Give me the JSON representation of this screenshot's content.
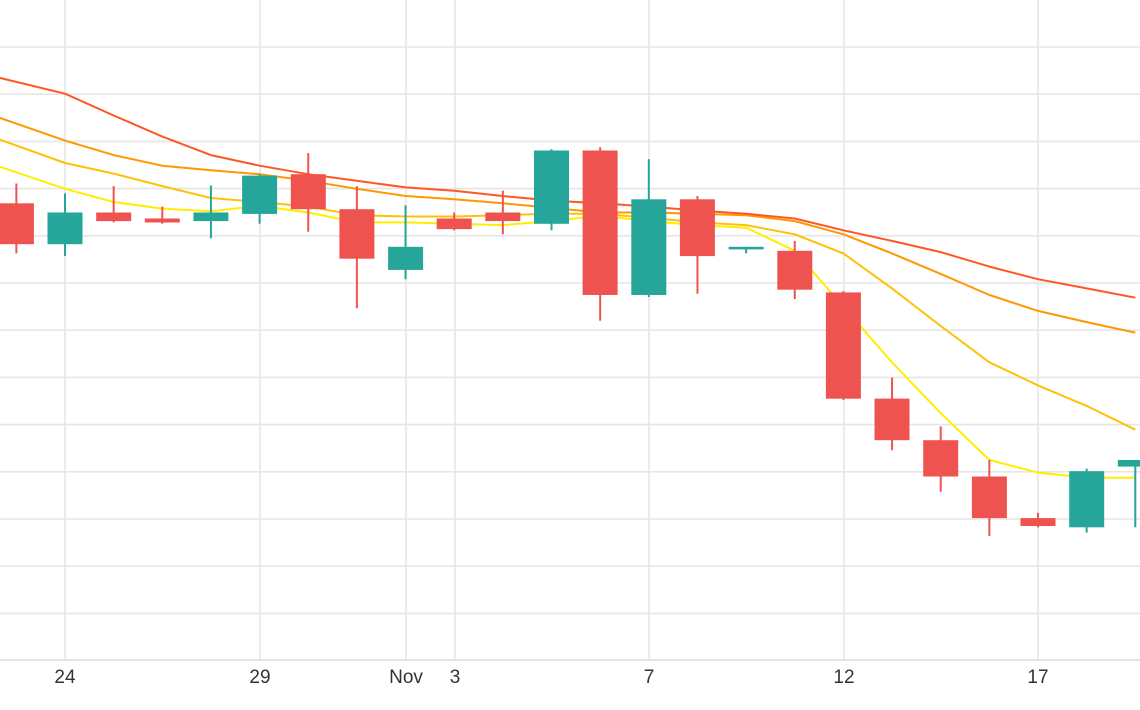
{
  "chart_data": {
    "type": "candlestick",
    "x_tick_labels": [
      "24",
      "29",
      "Nov",
      "3",
      "7",
      "12",
      "17"
    ],
    "y_range": [
      0,
      100
    ],
    "grid": true,
    "legend": "none",
    "colors": {
      "up": "#26a69a",
      "down": "#ef5350",
      "grid": "#e6e6e6",
      "ma": [
        "#ffee00",
        "#ffc107",
        "#ff9800",
        "#ff5722"
      ]
    },
    "candles": [
      {
        "day": -1,
        "open": 69.2,
        "high": 72.2,
        "low": 61.6,
        "close": 63.0
      },
      {
        "day": 0,
        "open": 63.0,
        "high": 70.7,
        "low": 61.2,
        "close": 67.8
      },
      {
        "day": 1,
        "open": 67.8,
        "high": 71.8,
        "low": 66.3,
        "close": 66.5
      },
      {
        "day": 2,
        "open": 66.9,
        "high": 68.7,
        "low": 66.1,
        "close": 66.3
      },
      {
        "day": 3,
        "open": 66.5,
        "high": 71.9,
        "low": 63.9,
        "close": 67.8
      },
      {
        "day": 4,
        "open": 67.6,
        "high": 73.6,
        "low": 66.1,
        "close": 73.4
      },
      {
        "day": 5,
        "open": 73.6,
        "high": 76.8,
        "low": 64.9,
        "close": 68.3
      },
      {
        "day": 6,
        "open": 68.3,
        "high": 71.8,
        "low": 53.3,
        "close": 60.8
      },
      {
        "day": 7,
        "open": 59.1,
        "high": 68.9,
        "low": 57.7,
        "close": 62.6
      },
      {
        "day": 8,
        "open": 66.9,
        "high": 67.8,
        "low": 65.1,
        "close": 65.3
      },
      {
        "day": 9,
        "open": 67.8,
        "high": 71.1,
        "low": 64.5,
        "close": 66.5
      },
      {
        "day": 10,
        "open": 66.1,
        "high": 77.4,
        "low": 65.1,
        "close": 77.2
      },
      {
        "day": 11,
        "open": 77.2,
        "high": 77.7,
        "low": 51.4,
        "close": 55.3
      },
      {
        "day": 12,
        "open": 55.3,
        "high": 75.9,
        "low": 55.0,
        "close": 69.8
      },
      {
        "day": 13,
        "open": 69.8,
        "high": 70.3,
        "low": 55.5,
        "close": 61.2
      },
      {
        "day": 14,
        "open": 62.2,
        "high": 62.6,
        "low": 61.6,
        "close": 62.6
      },
      {
        "day": 15,
        "open": 62.0,
        "high": 63.5,
        "low": 54.7,
        "close": 56.1
      },
      {
        "day": 16,
        "open": 55.7,
        "high": 55.9,
        "low": 39.4,
        "close": 39.6
      },
      {
        "day": 17,
        "open": 39.6,
        "high": 42.8,
        "low": 31.8,
        "close": 33.3
      },
      {
        "day": 18,
        "open": 33.3,
        "high": 35.4,
        "low": 25.5,
        "close": 27.8
      },
      {
        "day": 19,
        "open": 27.8,
        "high": 30.3,
        "low": 18.8,
        "close": 21.5
      },
      {
        "day": 20,
        "open": 21.5,
        "high": 22.3,
        "low": 20.1,
        "close": 20.3
      },
      {
        "day": 21,
        "open": 20.1,
        "high": 29.0,
        "low": 19.3,
        "close": 28.6
      },
      {
        "day": 22,
        "open": 29.3,
        "high": 30.3,
        "low": 20.1,
        "close": 30.3
      }
    ],
    "moving_averages": [
      {
        "color": "#ffee00",
        "points": [
          [
            -1.4,
            74.9
          ],
          [
            0,
            71.4
          ],
          [
            1,
            69.4
          ],
          [
            2,
            68.4
          ],
          [
            3,
            68.0
          ],
          [
            4,
            68.8
          ],
          [
            5,
            67.8
          ],
          [
            6,
            66.3
          ],
          [
            7,
            66.3
          ],
          [
            8,
            66.1
          ],
          [
            9,
            65.9
          ],
          [
            10,
            66.5
          ],
          [
            11,
            67.3
          ],
          [
            12,
            66.5
          ],
          [
            13,
            65.9
          ],
          [
            14,
            65.5
          ],
          [
            15,
            62.0
          ],
          [
            16,
            53.5
          ],
          [
            17,
            45.1
          ],
          [
            18,
            37.4
          ],
          [
            19,
            30.3
          ],
          [
            20,
            28.4
          ],
          [
            21,
            27.6
          ],
          [
            22,
            27.6
          ]
        ]
      },
      {
        "color": "#ffc107",
        "points": [
          [
            -1.4,
            79.0
          ],
          [
            0,
            75.3
          ],
          [
            1,
            73.7
          ],
          [
            2,
            71.8
          ],
          [
            3,
            70.0
          ],
          [
            4,
            69.4
          ],
          [
            5,
            68.7
          ],
          [
            6,
            67.4
          ],
          [
            7,
            67.2
          ],
          [
            8,
            67.2
          ],
          [
            9,
            67.4
          ],
          [
            10,
            67.6
          ],
          [
            11,
            67.6
          ],
          [
            12,
            67.0
          ],
          [
            13,
            66.3
          ],
          [
            14,
            65.9
          ],
          [
            15,
            64.5
          ],
          [
            16,
            61.6
          ],
          [
            17,
            56.3
          ],
          [
            18,
            50.6
          ],
          [
            19,
            45.1
          ],
          [
            20,
            41.6
          ],
          [
            21,
            38.5
          ],
          [
            22,
            34.9
          ]
        ]
      },
      {
        "color": "#ff9800",
        "points": [
          [
            -1.4,
            82.3
          ],
          [
            0,
            78.7
          ],
          [
            1,
            76.5
          ],
          [
            2,
            74.9
          ],
          [
            3,
            74.2
          ],
          [
            4,
            73.6
          ],
          [
            5,
            72.6
          ],
          [
            6,
            71.4
          ],
          [
            7,
            70.3
          ],
          [
            8,
            69.8
          ],
          [
            9,
            69.2
          ],
          [
            10,
            68.5
          ],
          [
            11,
            67.8
          ],
          [
            12,
            67.8
          ],
          [
            13,
            67.6
          ],
          [
            14,
            67.4
          ],
          [
            15,
            66.5
          ],
          [
            16,
            64.5
          ],
          [
            17,
            61.6
          ],
          [
            18,
            58.5
          ],
          [
            19,
            55.3
          ],
          [
            20,
            52.9
          ],
          [
            21,
            51.2
          ],
          [
            22,
            49.6
          ]
        ]
      },
      {
        "color": "#ff5722",
        "points": [
          [
            -1.4,
            88.3
          ],
          [
            0,
            85.8
          ],
          [
            1,
            82.5
          ],
          [
            2,
            79.3
          ],
          [
            3,
            76.5
          ],
          [
            4,
            74.9
          ],
          [
            5,
            73.6
          ],
          [
            6,
            72.6
          ],
          [
            7,
            71.6
          ],
          [
            8,
            71.1
          ],
          [
            9,
            70.3
          ],
          [
            10,
            69.6
          ],
          [
            11,
            69.2
          ],
          [
            12,
            68.7
          ],
          [
            13,
            68.1
          ],
          [
            14,
            67.6
          ],
          [
            15,
            66.9
          ],
          [
            16,
            65.1
          ],
          [
            17,
            63.5
          ],
          [
            18,
            61.8
          ],
          [
            19,
            59.6
          ],
          [
            20,
            57.7
          ],
          [
            21,
            56.3
          ],
          [
            22,
            54.9
          ]
        ]
      }
    ]
  }
}
